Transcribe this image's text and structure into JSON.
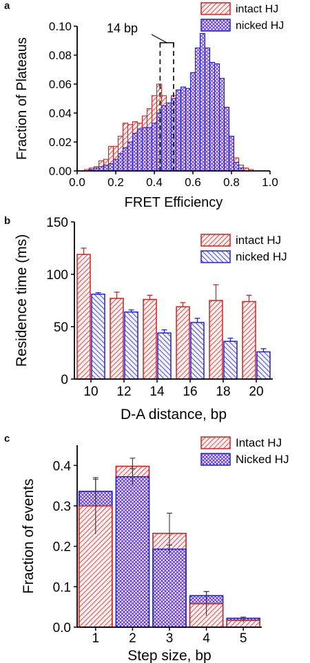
{
  "chart_data": [
    {
      "panel": "a",
      "type": "bar",
      "xlabel": "FRET Efficiency",
      "ylabel": "Fraction of Plateaus",
      "xlim": [
        0.0,
        1.0
      ],
      "ylim": [
        0.0,
        0.1
      ],
      "xticks": [
        "0.0",
        "0.2",
        "0.4",
        "0.6",
        "0.8",
        "1.0"
      ],
      "yticks": [
        "0.00",
        "0.02",
        "0.04",
        "0.06",
        "0.08",
        "0.10"
      ],
      "bin_centers": [
        0.05,
        0.075,
        0.1,
        0.125,
        0.15,
        0.175,
        0.2,
        0.225,
        0.25,
        0.275,
        0.3,
        0.325,
        0.35,
        0.375,
        0.4,
        0.425,
        0.45,
        0.475,
        0.5,
        0.525,
        0.55,
        0.575,
        0.6,
        0.625,
        0.65,
        0.675,
        0.7,
        0.725,
        0.75,
        0.775,
        0.8,
        0.825,
        0.85,
        0.875,
        0.9,
        0.925
      ],
      "series": [
        {
          "name": "intact HJ",
          "color": "#d42020",
          "values": [
            0.001,
            0.002,
            0.003,
            0.007,
            0.008,
            0.017,
            0.017,
            0.024,
            0.033,
            0.032,
            0.034,
            0.033,
            0.038,
            0.043,
            0.052,
            0.06,
            0.052,
            0.043,
            0.052,
            0.035,
            0.036,
            0.041,
            0.039,
            0.045,
            0.04,
            0.042,
            0.042,
            0.038,
            0.042,
            0.036,
            0.023,
            0.009,
            0.004,
            0.002,
            0.001,
            0.0
          ]
        },
        {
          "name": "nicked HJ",
          "color": "#2020d8",
          "values": [
            0.0,
            0.001,
            0.002,
            0.003,
            0.004,
            0.005,
            0.008,
            0.012,
            0.016,
            0.02,
            0.026,
            0.029,
            0.03,
            0.03,
            0.033,
            0.04,
            0.045,
            0.047,
            0.05,
            0.056,
            0.058,
            0.057,
            0.068,
            0.085,
            0.095,
            0.085,
            0.075,
            0.074,
            0.064,
            0.044,
            0.024,
            0.006,
            0.002,
            0.0,
            0.0,
            0.0
          ]
        }
      ],
      "annotation": "14 bp",
      "dashed_lines_x": [
        0.43,
        0.5
      ],
      "legend_position": "top-right"
    },
    {
      "panel": "b",
      "type": "bar",
      "categories": [
        "10",
        "12",
        "14",
        "16",
        "18",
        "20"
      ],
      "xlabel": "D-A distance, bp",
      "ylabel": "Residence time (ms)",
      "ylim": [
        0,
        150
      ],
      "yticks": [
        "0",
        "50",
        "100",
        "150"
      ],
      "series": [
        {
          "name": "intact HJ",
          "color": "#d42020",
          "values": [
            119,
            77,
            76,
            69,
            75,
            74
          ],
          "errors": [
            6,
            6,
            4,
            4,
            15,
            6
          ]
        },
        {
          "name": "nicked HJ",
          "color": "#2020d8",
          "values": [
            81,
            64,
            44,
            54,
            36,
            26
          ],
          "errors": [
            1.5,
            2,
            3,
            4,
            3,
            3
          ]
        }
      ],
      "legend_position": "top-right"
    },
    {
      "panel": "c",
      "type": "bar",
      "categories": [
        "1",
        "2",
        "3",
        "4",
        "5"
      ],
      "xlabel": "Step size, bp",
      "ylabel": "Fraction of events",
      "ylim": [
        0.0,
        0.45
      ],
      "yticks": [
        "0.0",
        "0.1",
        "0.2",
        "0.3",
        "0.4"
      ],
      "series": [
        {
          "name": "Intact HJ",
          "color": "#d42020",
          "values": [
            0.3,
            0.398,
            0.232,
            0.058,
            0.017
          ],
          "errors": [
            0.07,
            0.02,
            0.05,
            0.03,
            0.005
          ]
        },
        {
          "name": "Nicked HJ",
          "color": "#2020d8",
          "values": [
            0.336,
            0.372,
            0.193,
            0.078,
            0.022
          ],
          "errors": [
            0.03,
            0.02,
            0.01,
            0.01,
            0.003
          ]
        }
      ],
      "legend_position": "top-right"
    }
  ],
  "panels": {
    "a": "a",
    "b": "b",
    "c": "c"
  }
}
